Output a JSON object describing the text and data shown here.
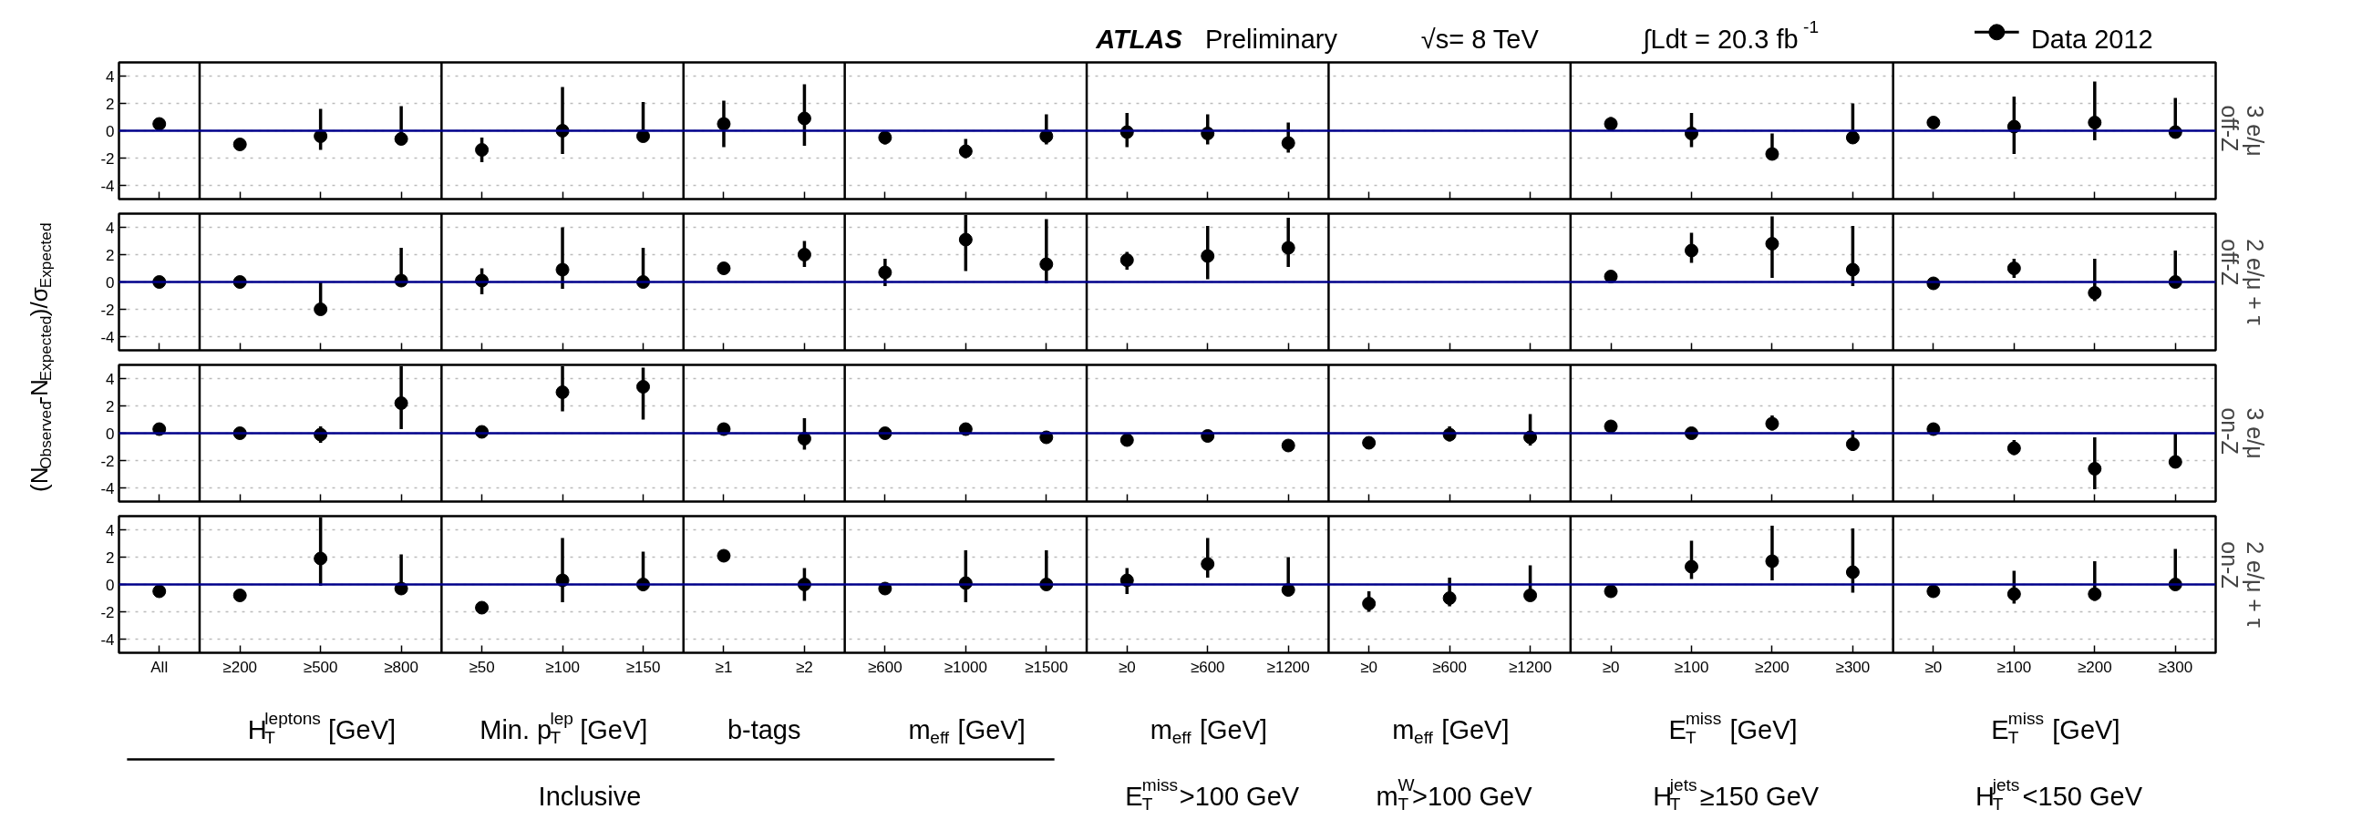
{
  "chart_data": [
    {
      "type": "scatter",
      "title": "3 e/μ\noff-Z",
      "ylabel": "(N$_{Observed}$-N$_{Expected}$)/σ$_{Expected}$",
      "annotations": [
        "ATLAS",
        "Preliminary",
        "√s= 8 TeV",
        "∫Ldt = 20.3 fb$^{-1}$"
      ],
      "legend": "top right",
      "marker": "circle",
      "grid": "y",
      "tick_labels": "y",
      "categories": [
        null,
        null,
        null,
        null,
        null,
        null,
        null,
        null,
        null,
        null,
        null,
        null,
        null,
        null,
        null,
        null,
        null,
        null,
        null,
        null,
        null,
        null,
        null,
        null,
        null,
        null
      ],
      "ylim": [
        -5,
        5
      ],
      "yticks": [
        -4,
        -2,
        0,
        2,
        4
      ],
      "ref_lines": [
        {
          "axis": "y",
          "value": 0,
          "color": "#00008b",
          "line_style": "solid"
        }
      ],
      "series": [
        {
          "name": "Data 2012",
          "color": "#000000",
          "values": [
            0.5,
            -1.0,
            -0.4,
            -0.6,
            -1.4,
            0.0,
            -0.4,
            0.5,
            0.9,
            -0.5,
            -1.5,
            -0.4,
            -0.1,
            -0.2,
            -0.9,
            null,
            null,
            null,
            0.5,
            -0.2,
            -1.7,
            -0.5,
            0.6,
            0.3,
            0.6,
            -0.1
          ],
          "errors": [
            null,
            null,
            [
              -1.4,
              1.6
            ],
            [
              -0.6,
              1.8
            ],
            [
              -2.3,
              -0.5
            ],
            [
              -1.7,
              3.2
            ],
            [
              -0.4,
              2.1
            ],
            [
              -1.2,
              2.2
            ],
            [
              -1.1,
              3.4
            ],
            [
              -1.0,
              0.0
            ],
            [
              -2.0,
              -0.6
            ],
            [
              -1.0,
              1.2
            ],
            [
              -1.2,
              1.3
            ],
            [
              -1.0,
              1.2
            ],
            [
              -1.6,
              0.6
            ],
            null,
            null,
            null,
            [
              0.0,
              1.0
            ],
            [
              -1.2,
              1.3
            ],
            [
              -1.7,
              -0.2
            ],
            [
              -0.5,
              2.0
            ],
            null,
            [
              -1.7,
              2.5
            ],
            [
              -0.7,
              3.6
            ],
            [
              -0.1,
              2.4
            ]
          ]
        }
      ]
    },
    {
      "type": "scatter",
      "title": "2 e/μ + τ\noff-Z",
      "marker": "circle",
      "grid": "y",
      "tick_labels": "y",
      "categories": [
        null,
        null,
        null,
        null,
        null,
        null,
        null,
        null,
        null,
        null,
        null,
        null,
        null,
        null,
        null,
        null,
        null,
        null,
        null,
        null,
        null,
        null,
        null,
        null,
        null,
        null
      ],
      "ylim": [
        -5,
        5
      ],
      "yticks": [
        -4,
        -2,
        0,
        2,
        4
      ],
      "ref_lines": [
        {
          "axis": "y",
          "value": 0,
          "color": "#00008b",
          "line_style": "solid"
        }
      ],
      "series": [
        {
          "color": "#000000",
          "values": [
            0.0,
            0.0,
            -2.0,
            0.1,
            0.1,
            0.9,
            0.0,
            1.0,
            2.0,
            0.7,
            3.1,
            1.3,
            1.6,
            1.9,
            2.5,
            null,
            null,
            null,
            0.4,
            2.3,
            2.8,
            0.9,
            -0.1,
            1.0,
            -0.8,
            0.0
          ],
          "errors": [
            null,
            null,
            [
              -2.0,
              0.0
            ],
            [
              0.1,
              2.5
            ],
            [
              -0.9,
              1.0
            ],
            [
              -0.5,
              4.0
            ],
            [
              0.0,
              2.5
            ],
            null,
            [
              1.1,
              3.0
            ],
            [
              -0.3,
              1.7
            ],
            [
              0.8,
              4.9
            ],
            [
              -0.1,
              4.6
            ],
            [
              0.9,
              2.2
            ],
            [
              0.2,
              4.1
            ],
            [
              1.1,
              4.7
            ],
            null,
            null,
            null,
            null,
            [
              1.4,
              3.6
            ],
            [
              0.3,
              4.8
            ],
            [
              -0.3,
              4.1
            ],
            null,
            [
              0.3,
              1.7
            ],
            [
              -1.4,
              1.7
            ],
            [
              0.0,
              2.3
            ]
          ]
        }
      ]
    },
    {
      "type": "scatter",
      "title": "3 e/μ\non-Z",
      "marker": "circle",
      "grid": "y",
      "tick_labels": "y",
      "categories": [
        null,
        null,
        null,
        null,
        null,
        null,
        null,
        null,
        null,
        null,
        null,
        null,
        null,
        null,
        null,
        null,
        null,
        null,
        null,
        null,
        null,
        null,
        null,
        null,
        null,
        null
      ],
      "ylim": [
        -5,
        5
      ],
      "yticks": [
        -4,
        -2,
        0,
        2,
        4
      ],
      "ref_lines": [
        {
          "axis": "y",
          "value": 0,
          "color": "#00008b",
          "line_style": "solid"
        }
      ],
      "series": [
        {
          "color": "#000000",
          "values": [
            0.3,
            0.0,
            -0.1,
            2.2,
            0.1,
            3.0,
            3.4,
            0.3,
            -0.4,
            0.0,
            0.3,
            -0.3,
            -0.5,
            -0.2,
            -0.9,
            -0.7,
            -0.1,
            -0.3,
            0.5,
            0.0,
            0.7,
            -0.8,
            0.3,
            -1.1,
            -2.6,
            -2.1
          ],
          "errors": [
            null,
            null,
            [
              -0.7,
              0.5
            ],
            [
              0.3,
              4.9
            ],
            null,
            [
              1.6,
              4.9
            ],
            [
              1.0,
              4.8
            ],
            null,
            [
              -1.2,
              1.1
            ],
            null,
            null,
            null,
            null,
            null,
            null,
            null,
            [
              -0.6,
              0.5
            ],
            [
              -0.9,
              1.4
            ],
            null,
            null,
            [
              0.2,
              1.3
            ],
            [
              -1.3,
              0.2
            ],
            null,
            [
              -1.6,
              -0.5
            ],
            [
              -4.1,
              -0.3
            ],
            [
              -2.1,
              0.0
            ]
          ]
        }
      ]
    },
    {
      "type": "scatter",
      "title": "2 e/μ + τ\non-Z",
      "marker": "circle",
      "grid": "y",
      "annotations": [
        "H$^{leptons}$$_{T}$ [GeV]",
        "Min. p$^{lep}$$_{T}$ [GeV]",
        "b-tags",
        "m$_{eff}$ [GeV]",
        "m$_{eff}$ [GeV]",
        "m$_{eff}$ [GeV]",
        "E$^{miss}$$_{T}$ [GeV]",
        "E$^{miss}$$_{T}$ [GeV]",
        "Inclusive",
        "E$^{miss}$$_{T}$>100 GeV",
        "m$^{W}$$_{T}$>100 GeV",
        "H$^{jets}$$_{T}$≥150 GeV",
        "H$^{jets}$$_{T}$<150 GeV"
      ],
      "categories": [
        "All",
        "≥200",
        "≥500",
        "≥800",
        "≥50",
        "≥100",
        "≥150",
        "≥1",
        "≥2",
        "≥600",
        "≥1000",
        "≥1500",
        "≥0",
        "≥600",
        "≥1200",
        "≥0",
        "≥600",
        "≥1200",
        "≥0",
        "≥100",
        "≥200",
        "≥300",
        "≥0",
        "≥100",
        "≥200",
        "≥300"
      ],
      "ylim": [
        -5,
        5
      ],
      "yticks": [
        -4,
        -2,
        0,
        2,
        4
      ],
      "ref_lines": [
        {
          "axis": "y",
          "value": 0,
          "color": "#00008b",
          "line_style": "solid"
        }
      ],
      "series": [
        {
          "color": "#000000",
          "values": [
            -0.5,
            -0.8,
            1.9,
            -0.3,
            -1.7,
            0.3,
            0.0,
            2.1,
            0.0,
            -0.3,
            0.1,
            0.0,
            0.3,
            1.5,
            -0.4,
            -1.4,
            -1.0,
            -0.8,
            -0.5,
            1.3,
            1.7,
            0.9,
            -0.5,
            -0.7,
            -0.7,
            0.0
          ],
          "errors": [
            null,
            null,
            [
              -0.1,
              4.9
            ],
            [
              -0.3,
              2.2
            ],
            null,
            [
              -1.3,
              3.4
            ],
            [
              -0.5,
              2.4
            ],
            null,
            [
              -1.2,
              1.2
            ],
            null,
            [
              -1.3,
              2.5
            ],
            [
              0.0,
              2.5
            ],
            [
              -0.7,
              1.2
            ],
            [
              0.5,
              3.4
            ],
            [
              -0.4,
              2.0
            ],
            [
              -2.0,
              -0.5
            ],
            [
              -1.6,
              0.5
            ],
            [
              -0.8,
              1.4
            ],
            null,
            [
              0.4,
              3.2
            ],
            [
              0.3,
              4.3
            ],
            [
              -0.6,
              4.1
            ],
            null,
            [
              -1.4,
              1.0
            ],
            [
              -1.2,
              1.7
            ],
            [
              0.0,
              2.6
            ]
          ]
        }
      ]
    }
  ]
}
